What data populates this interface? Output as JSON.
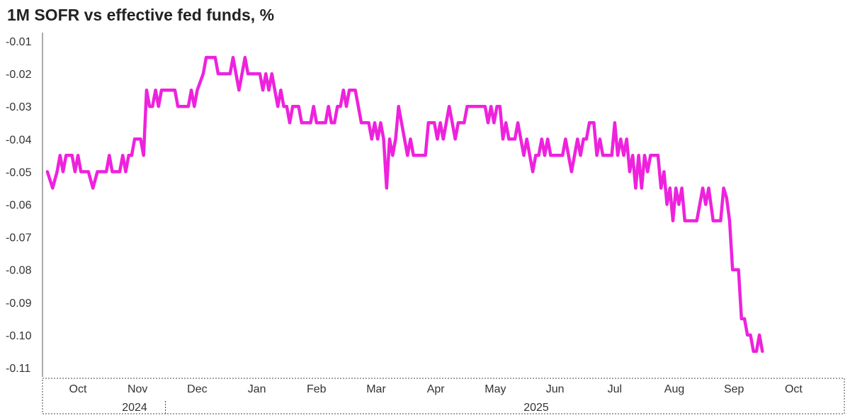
{
  "chart_data": {
    "type": "line",
    "title": "1M SOFR vs effective fed funds, %",
    "xlabel": "",
    "ylabel": "",
    "ylim": [
      -0.11,
      -0.01
    ],
    "yticks": [
      "-0.01",
      "-0.02",
      "-0.03",
      "-0.04",
      "-0.05",
      "-0.06",
      "-0.07",
      "-0.08",
      "-0.09",
      "-0.10",
      "-0.11"
    ],
    "months": [
      "Oct",
      "Nov",
      "Dec",
      "Jan",
      "Feb",
      "Mar",
      "Apr",
      "May",
      "Jun",
      "Jul",
      "Aug",
      "Sep",
      "Oct"
    ],
    "years": [
      "2024",
      "2025"
    ],
    "line_color": "#ee22dd",
    "grid": false,
    "series": [
      {
        "points": [
          [
            -0.05,
            -0.05
          ],
          [
            0.3,
            -0.055
          ],
          [
            0.6,
            -0.05
          ],
          [
            0.8,
            -0.045
          ],
          [
            1.0,
            -0.05
          ],
          [
            1.2,
            -0.045
          ],
          [
            1.6,
            -0.045
          ],
          [
            1.8,
            -0.05
          ],
          [
            2.0,
            -0.045
          ],
          [
            2.2,
            -0.05
          ],
          [
            2.7,
            -0.05
          ],
          [
            3.0,
            -0.055
          ],
          [
            3.3,
            -0.05
          ],
          [
            3.9,
            -0.05
          ],
          [
            4.1,
            -0.045
          ],
          [
            4.3,
            -0.05
          ],
          [
            4.8,
            -0.05
          ],
          [
            5.0,
            -0.045
          ],
          [
            5.2,
            -0.05
          ],
          [
            5.4,
            -0.045
          ],
          [
            5.6,
            -0.045
          ],
          [
            5.8,
            -0.04
          ],
          [
            6.2,
            -0.04
          ],
          [
            6.4,
            -0.045
          ],
          [
            6.6,
            -0.025
          ],
          [
            6.8,
            -0.03
          ],
          [
            7.0,
            -0.03
          ],
          [
            7.2,
            -0.025
          ],
          [
            7.4,
            -0.03
          ],
          [
            7.6,
            -0.025
          ],
          [
            8.5,
            -0.025
          ],
          [
            8.7,
            -0.03
          ],
          [
            9.4,
            -0.03
          ],
          [
            9.6,
            -0.025
          ],
          [
            9.8,
            -0.03
          ],
          [
            10.0,
            -0.025
          ],
          [
            10.4,
            -0.02
          ],
          [
            10.6,
            -0.015
          ],
          [
            11.2,
            -0.015
          ],
          [
            11.4,
            -0.02
          ],
          [
            12.2,
            -0.02
          ],
          [
            12.4,
            -0.015
          ],
          [
            12.6,
            -0.02
          ],
          [
            12.8,
            -0.025
          ],
          [
            13.0,
            -0.02
          ],
          [
            13.2,
            -0.015
          ],
          [
            13.4,
            -0.02
          ],
          [
            14.2,
            -0.02
          ],
          [
            14.4,
            -0.025
          ],
          [
            14.6,
            -0.02
          ],
          [
            14.8,
            -0.025
          ],
          [
            15.0,
            -0.02
          ],
          [
            15.2,
            -0.025
          ],
          [
            15.4,
            -0.03
          ],
          [
            15.6,
            -0.025
          ],
          [
            15.8,
            -0.03
          ],
          [
            16.0,
            -0.03
          ],
          [
            16.2,
            -0.035
          ],
          [
            16.4,
            -0.03
          ],
          [
            16.8,
            -0.03
          ],
          [
            17.0,
            -0.035
          ],
          [
            17.6,
            -0.035
          ],
          [
            17.8,
            -0.03
          ],
          [
            18.0,
            -0.035
          ],
          [
            18.6,
            -0.035
          ],
          [
            18.8,
            -0.03
          ],
          [
            19.0,
            -0.035
          ],
          [
            19.2,
            -0.035
          ],
          [
            19.4,
            -0.03
          ],
          [
            19.6,
            -0.03
          ],
          [
            19.8,
            -0.025
          ],
          [
            20.0,
            -0.03
          ],
          [
            20.2,
            -0.025
          ],
          [
            20.6,
            -0.025
          ],
          [
            21.0,
            -0.035
          ],
          [
            21.5,
            -0.035
          ],
          [
            21.7,
            -0.04
          ],
          [
            21.9,
            -0.035
          ],
          [
            22.1,
            -0.04
          ],
          [
            22.3,
            -0.035
          ],
          [
            22.5,
            -0.04
          ],
          [
            22.7,
            -0.055
          ],
          [
            22.9,
            -0.04
          ],
          [
            23.1,
            -0.045
          ],
          [
            23.3,
            -0.04
          ],
          [
            23.5,
            -0.03
          ],
          [
            23.7,
            -0.035
          ],
          [
            23.9,
            -0.04
          ],
          [
            24.1,
            -0.045
          ],
          [
            24.3,
            -0.04
          ],
          [
            24.5,
            -0.045
          ],
          [
            25.3,
            -0.045
          ],
          [
            25.5,
            -0.035
          ],
          [
            25.9,
            -0.035
          ],
          [
            26.1,
            -0.04
          ],
          [
            26.3,
            -0.035
          ],
          [
            26.5,
            -0.04
          ],
          [
            26.7,
            -0.035
          ],
          [
            26.9,
            -0.03
          ],
          [
            27.1,
            -0.035
          ],
          [
            27.3,
            -0.04
          ],
          [
            27.5,
            -0.035
          ],
          [
            27.9,
            -0.035
          ],
          [
            28.1,
            -0.03
          ],
          [
            29.3,
            -0.03
          ],
          [
            29.5,
            -0.035
          ],
          [
            29.7,
            -0.03
          ],
          [
            29.9,
            -0.035
          ],
          [
            30.1,
            -0.03
          ],
          [
            30.3,
            -0.03
          ],
          [
            30.5,
            -0.04
          ],
          [
            30.7,
            -0.035
          ],
          [
            30.9,
            -0.04
          ],
          [
            31.3,
            -0.04
          ],
          [
            31.5,
            -0.035
          ],
          [
            31.7,
            -0.04
          ],
          [
            31.9,
            -0.045
          ],
          [
            32.1,
            -0.04
          ],
          [
            32.3,
            -0.045
          ],
          [
            32.5,
            -0.05
          ],
          [
            32.7,
            -0.045
          ],
          [
            32.9,
            -0.045
          ],
          [
            33.1,
            -0.04
          ],
          [
            33.3,
            -0.045
          ],
          [
            33.5,
            -0.04
          ],
          [
            33.7,
            -0.045
          ],
          [
            34.5,
            -0.045
          ],
          [
            34.7,
            -0.04
          ],
          [
            34.9,
            -0.045
          ],
          [
            35.1,
            -0.05
          ],
          [
            35.3,
            -0.045
          ],
          [
            35.5,
            -0.04
          ],
          [
            35.7,
            -0.045
          ],
          [
            35.9,
            -0.04
          ],
          [
            36.1,
            -0.04
          ],
          [
            36.3,
            -0.035
          ],
          [
            36.6,
            -0.035
          ],
          [
            36.8,
            -0.045
          ],
          [
            37.0,
            -0.04
          ],
          [
            37.2,
            -0.045
          ],
          [
            37.8,
            -0.045
          ],
          [
            38.0,
            -0.035
          ],
          [
            38.2,
            -0.045
          ],
          [
            38.4,
            -0.04
          ],
          [
            38.6,
            -0.045
          ],
          [
            38.8,
            -0.04
          ],
          [
            39.0,
            -0.05
          ],
          [
            39.2,
            -0.045
          ],
          [
            39.4,
            -0.055
          ],
          [
            39.6,
            -0.045
          ],
          [
            39.8,
            -0.055
          ],
          [
            40.0,
            -0.045
          ],
          [
            40.2,
            -0.05
          ],
          [
            40.4,
            -0.045
          ],
          [
            40.9,
            -0.045
          ],
          [
            41.1,
            -0.055
          ],
          [
            41.3,
            -0.05
          ],
          [
            41.5,
            -0.06
          ],
          [
            41.7,
            -0.055
          ],
          [
            41.9,
            -0.065
          ],
          [
            42.1,
            -0.055
          ],
          [
            42.3,
            -0.06
          ],
          [
            42.5,
            -0.055
          ],
          [
            42.7,
            -0.065
          ],
          [
            43.5,
            -0.065
          ],
          [
            43.7,
            -0.06
          ],
          [
            43.9,
            -0.055
          ],
          [
            44.1,
            -0.06
          ],
          [
            44.3,
            -0.055
          ],
          [
            44.6,
            -0.065
          ],
          [
            45.1,
            -0.065
          ],
          [
            45.3,
            -0.055
          ],
          [
            45.5,
            -0.058
          ],
          [
            45.7,
            -0.065
          ],
          [
            45.9,
            -0.08
          ],
          [
            46.3,
            -0.08
          ],
          [
            46.5,
            -0.095
          ],
          [
            46.7,
            -0.095
          ],
          [
            46.9,
            -0.1
          ],
          [
            47.1,
            -0.1
          ],
          [
            47.3,
            -0.105
          ],
          [
            47.5,
            -0.105
          ],
          [
            47.7,
            -0.1
          ],
          [
            47.9,
            -0.105
          ]
        ]
      }
    ]
  }
}
